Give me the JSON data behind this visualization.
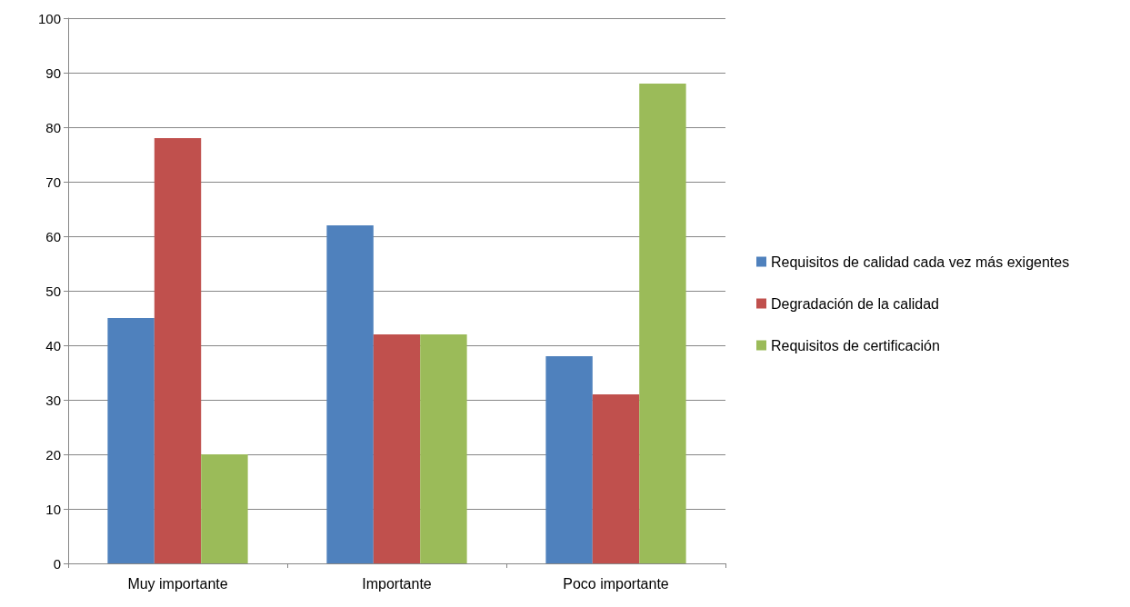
{
  "chart_data": {
    "type": "bar",
    "categories": [
      "Muy importante",
      "Importante",
      "Poco importante"
    ],
    "series": [
      {
        "name": "Requisitos de calidad cada vez más exigentes",
        "color": "#4f81bd",
        "values": [
          45,
          62,
          38
        ]
      },
      {
        "name": "Degradación de la calidad",
        "color": "#c0504d",
        "values": [
          78,
          42,
          31
        ]
      },
      {
        "name": "Requisitos de certificación",
        "color": "#9bbb59",
        "values": [
          20,
          42,
          88
        ]
      }
    ],
    "ylim": [
      0,
      100
    ],
    "yticks": [
      0,
      10,
      20,
      30,
      40,
      50,
      60,
      70,
      80,
      90,
      100
    ],
    "grid": "y",
    "legend": "right"
  }
}
